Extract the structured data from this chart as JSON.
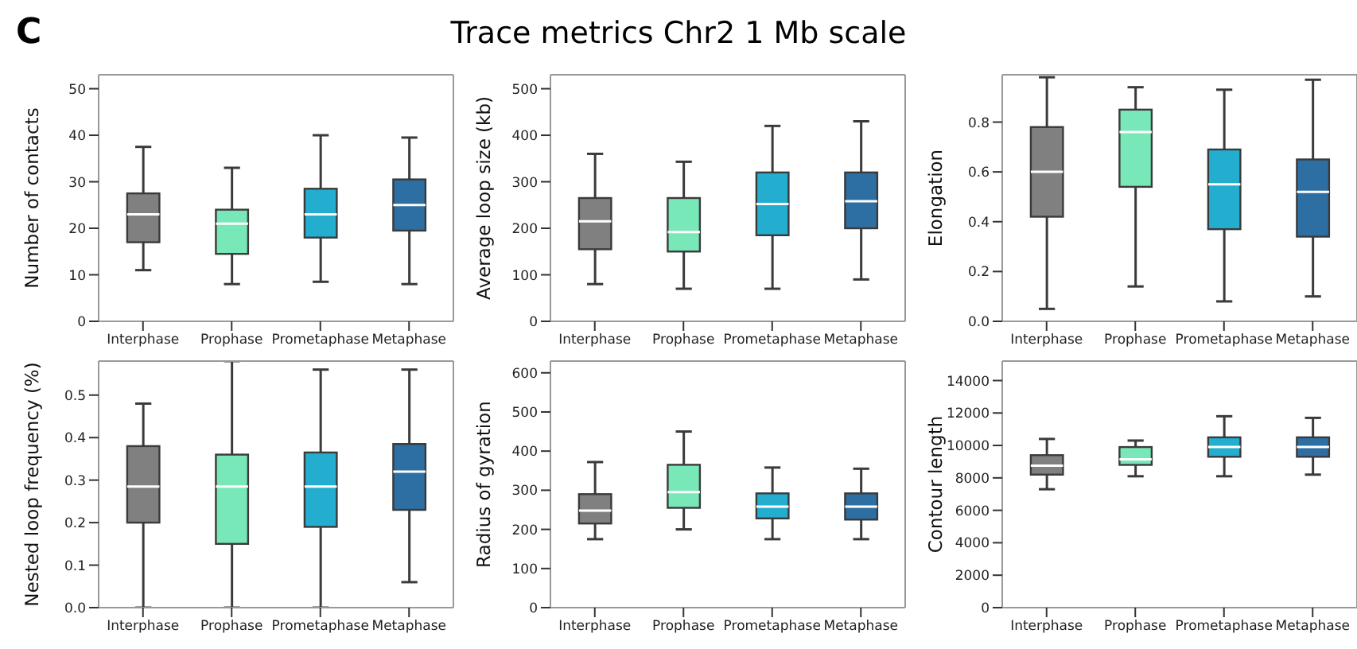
{
  "chart_data": [
    {
      "type": "box",
      "annotations": [
        "C"
      ],
      "ylabel": "Number of contacts",
      "categories": [
        "Interphase",
        "Prophase",
        "Prometaphase",
        "Metaphase"
      ],
      "colors": [
        "#808080",
        "#78e8b8",
        "#23aed0",
        "#2e6fa3"
      ],
      "ylim": [
        0,
        53
      ],
      "yticks": [
        0,
        10,
        20,
        30,
        40,
        50
      ],
      "boxes": [
        {
          "low": 11,
          "q1": 17,
          "median": 23,
          "q3": 27.5,
          "high": 37.5
        },
        {
          "low": 8,
          "q1": 14.5,
          "median": 21,
          "q3": 24,
          "high": 33
        },
        {
          "low": 8.5,
          "q1": 18,
          "median": 23,
          "q3": 28.5,
          "high": 40
        },
        {
          "low": 8,
          "q1": 19.5,
          "median": 25,
          "q3": 30.5,
          "high": 39.5
        }
      ]
    },
    {
      "type": "box",
      "title": "Trace metrics Chr2 1 Mb scale",
      "ylabel": "Average loop size (kb)",
      "categories": [
        "Interphase",
        "Prophase",
        "Prometaphase",
        "Metaphase"
      ],
      "colors": [
        "#808080",
        "#78e8b8",
        "#23aed0",
        "#2e6fa3"
      ],
      "ylim": [
        0,
        530
      ],
      "yticks": [
        0,
        100,
        200,
        300,
        400,
        500
      ],
      "boxes": [
        {
          "low": 80,
          "q1": 155,
          "median": 215,
          "q3": 265,
          "high": 360
        },
        {
          "low": 70,
          "q1": 150,
          "median": 192,
          "q3": 265,
          "high": 343
        },
        {
          "low": 70,
          "q1": 185,
          "median": 252,
          "q3": 320,
          "high": 420
        },
        {
          "low": 90,
          "q1": 200,
          "median": 258,
          "q3": 320,
          "high": 430
        }
      ]
    },
    {
      "type": "box",
      "ylabel": "Elongation",
      "categories": [
        "Interphase",
        "Prophase",
        "Prometaphase",
        "Metaphase"
      ],
      "colors": [
        "#808080",
        "#78e8b8",
        "#23aed0",
        "#2e6fa3"
      ],
      "ylim": [
        0,
        0.99
      ],
      "yticks": [
        {
          "value": 0,
          "label": "0.0"
        },
        0.2,
        0.4,
        0.6,
        0.8
      ],
      "boxes": [
        {
          "low": 0.05,
          "q1": 0.42,
          "median": 0.6,
          "q3": 0.78,
          "high": 0.98
        },
        {
          "low": 0.14,
          "q1": 0.54,
          "median": 0.76,
          "q3": 0.85,
          "high": 0.94
        },
        {
          "low": 0.08,
          "q1": 0.37,
          "median": 0.55,
          "q3": 0.69,
          "high": 0.93
        },
        {
          "low": 0.1,
          "q1": 0.34,
          "median": 0.52,
          "q3": 0.65,
          "high": 0.97
        }
      ]
    },
    {
      "type": "box",
      "ylabel": "Nested loop frequency (%)",
      "categories": [
        "Interphase",
        "Prophase",
        "Prometaphase",
        "Metaphase"
      ],
      "colors": [
        "#808080",
        "#78e8b8",
        "#23aed0",
        "#2e6fa3"
      ],
      "ylim": [
        0,
        0.58
      ],
      "yticks": [
        {
          "value": 0,
          "label": "0.0"
        },
        0.1,
        0.2,
        0.3,
        0.4,
        0.5
      ],
      "boxes": [
        {
          "low": 0,
          "q1": 0.2,
          "median": 0.285,
          "q3": 0.38,
          "high": 0.48
        },
        {
          "low": 0,
          "q1": 0.15,
          "median": 0.285,
          "q3": 0.36,
          "high": 0.58
        },
        {
          "low": 0,
          "q1": 0.19,
          "median": 0.285,
          "q3": 0.365,
          "high": 0.56
        },
        {
          "low": 0.06,
          "q1": 0.23,
          "median": 0.32,
          "q3": 0.385,
          "high": 0.56
        }
      ]
    },
    {
      "type": "box",
      "ylabel": "Radius of gyration",
      "categories": [
        "Interphase",
        "Prophase",
        "Prometaphase",
        "Metaphase"
      ],
      "colors": [
        "#808080",
        "#78e8b8",
        "#23aed0",
        "#2e6fa3"
      ],
      "ylim": [
        0,
        630
      ],
      "yticks": [
        0,
        100,
        200,
        300,
        400,
        500,
        600
      ],
      "boxes": [
        {
          "low": 175,
          "q1": 215,
          "median": 248,
          "q3": 290,
          "high": 372
        },
        {
          "low": 200,
          "q1": 255,
          "median": 295,
          "q3": 365,
          "high": 450
        },
        {
          "low": 175,
          "q1": 228,
          "median": 258,
          "q3": 292,
          "high": 358
        },
        {
          "low": 175,
          "q1": 225,
          "median": 258,
          "q3": 292,
          "high": 355
        }
      ]
    },
    {
      "type": "box",
      "ylabel": "Contour length",
      "categories": [
        "Interphase",
        "Prophase",
        "Prometaphase",
        "Metaphase"
      ],
      "colors": [
        "#808080",
        "#78e8b8",
        "#23aed0",
        "#2e6fa3"
      ],
      "ylim": [
        0,
        15200
      ],
      "yticks": [
        0,
        2000,
        4000,
        6000,
        8000,
        10000,
        12000,
        14000
      ],
      "boxes": [
        {
          "low": 7300,
          "q1": 8200,
          "median": 8750,
          "q3": 9400,
          "high": 10400
        },
        {
          "low": 8100,
          "q1": 8800,
          "median": 9150,
          "q3": 9900,
          "high": 10300
        },
        {
          "low": 8100,
          "q1": 9300,
          "median": 9900,
          "q3": 10500,
          "high": 11800
        },
        {
          "low": 8200,
          "q1": 9300,
          "median": 9900,
          "q3": 10500,
          "high": 11700
        }
      ]
    }
  ]
}
